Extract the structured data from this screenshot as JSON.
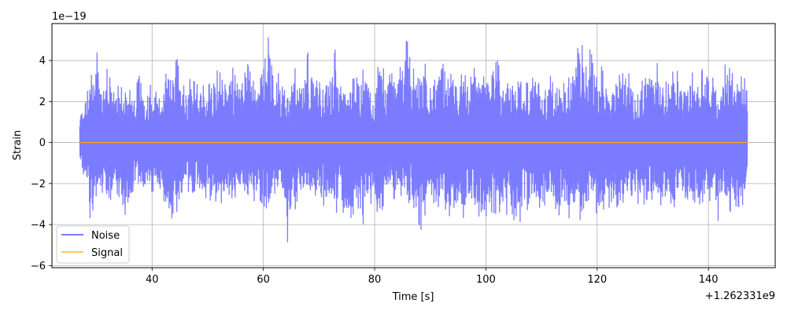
{
  "chart_data": {
    "type": "line",
    "xlabel": "Time [s]",
    "ylabel": "Strain",
    "x_offset_label": "+1.262331e9",
    "y_multiplier_label": "1e−19",
    "xlim": [
      22,
      152
    ],
    "ylim": [
      -6.1,
      5.8
    ],
    "xticks": [
      40,
      60,
      80,
      100,
      120,
      140
    ],
    "yticks": [
      -6,
      -4,
      -2,
      0,
      2,
      4
    ],
    "xtick_labels": [
      "40",
      "60",
      "80",
      "100",
      "120",
      "140"
    ],
    "ytick_labels": [
      "−6",
      "−4",
      "−2",
      "0",
      "2",
      "4"
    ],
    "grid": true,
    "legend": {
      "placement": "bottom-left"
    },
    "series": [
      {
        "name": "Noise",
        "color": "#7b7bff",
        "x_range": [
          27,
          147
        ],
        "envelope": [
          [
            27.0,
            1.5,
            -0.7
          ],
          [
            28.0,
            2.3,
            -2.5
          ],
          [
            29.0,
            3.8,
            -3.9
          ],
          [
            30.0,
            4.6,
            -3.3
          ],
          [
            31.0,
            2.6,
            -2.4
          ],
          [
            32.0,
            3.7,
            -3.4
          ],
          [
            33.0,
            2.4,
            -2.3
          ],
          [
            34.0,
            2.8,
            -2.6
          ],
          [
            35.0,
            2.6,
            -3.7
          ],
          [
            36.0,
            3.3,
            -2.5
          ],
          [
            37.0,
            2.7,
            -2.3
          ],
          [
            38.0,
            3.5,
            -2.3
          ],
          [
            39.0,
            2.6,
            -2.6
          ],
          [
            40.0,
            2.9,
            -2.4
          ],
          [
            41.0,
            2.3,
            -2.4
          ],
          [
            42.0,
            3.1,
            -2.6
          ],
          [
            43.0,
            3.6,
            -4.3
          ],
          [
            44.0,
            3.5,
            -3.2
          ],
          [
            44.5,
            5.2,
            -3.4
          ],
          [
            45.0,
            3.0,
            -2.5
          ],
          [
            46.0,
            2.7,
            -2.3
          ],
          [
            47.0,
            3.2,
            -2.5
          ],
          [
            48.0,
            2.8,
            -2.3
          ],
          [
            49.0,
            3.3,
            -2.9
          ],
          [
            50.0,
            2.7,
            -2.6
          ],
          [
            51.0,
            3.3,
            -3.1
          ],
          [
            52.0,
            3.6,
            -2.6
          ],
          [
            53.0,
            2.7,
            -3.4
          ],
          [
            54.0,
            4.1,
            -2.4
          ],
          [
            55.0,
            3.2,
            -3.3
          ],
          [
            56.0,
            3.6,
            -2.3
          ],
          [
            57.0,
            4.0,
            -2.4
          ],
          [
            58.0,
            3.1,
            -3.0
          ],
          [
            59.0,
            2.7,
            -2.6
          ],
          [
            60.0,
            3.6,
            -3.1
          ],
          [
            61.0,
            5.3,
            -3.3
          ],
          [
            62.0,
            3.1,
            -2.5
          ],
          [
            63.0,
            3.5,
            -2.4
          ],
          [
            64.0,
            2.9,
            -3.6
          ],
          [
            64.5,
            2.4,
            -5.4
          ],
          [
            65.0,
            3.2,
            -2.8
          ],
          [
            66.0,
            3.8,
            -3.4
          ],
          [
            67.0,
            3.1,
            -2.7
          ],
          [
            68.0,
            4.4,
            -2.4
          ],
          [
            69.0,
            3.2,
            -2.9
          ],
          [
            70.0,
            2.9,
            -3.0
          ],
          [
            71.0,
            3.3,
            -3.1
          ],
          [
            72.0,
            3.0,
            -2.8
          ],
          [
            73.0,
            4.7,
            -3.5
          ],
          [
            74.0,
            3.0,
            -3.0
          ],
          [
            75.0,
            2.8,
            -4.2
          ],
          [
            76.0,
            3.1,
            -3.5
          ],
          [
            77.0,
            3.2,
            -3.6
          ],
          [
            78.0,
            3.6,
            -4.0
          ],
          [
            79.0,
            3.3,
            -2.9
          ],
          [
            80.0,
            2.6,
            -3.2
          ],
          [
            81.0,
            4.4,
            -3.6
          ],
          [
            82.0,
            3.1,
            -2.7
          ],
          [
            83.0,
            3.4,
            -2.6
          ],
          [
            84.0,
            3.2,
            -2.9
          ],
          [
            85.0,
            4.0,
            -2.5
          ],
          [
            85.8,
            5.1,
            -3.2
          ],
          [
            86.5,
            3.8,
            -2.7
          ],
          [
            87.5,
            3.4,
            -3.6
          ],
          [
            88.0,
            3.0,
            -4.6
          ],
          [
            89.0,
            3.9,
            -3.6
          ],
          [
            90.0,
            3.3,
            -2.8
          ],
          [
            91.0,
            3.0,
            -3.6
          ],
          [
            92.0,
            4.2,
            -2.6
          ],
          [
            93.0,
            3.0,
            -3.5
          ],
          [
            94.0,
            3.5,
            -3.7
          ],
          [
            95.0,
            3.2,
            -3.2
          ],
          [
            96.0,
            3.4,
            -3.7
          ],
          [
            97.0,
            3.0,
            -3.2
          ],
          [
            98.0,
            3.7,
            -3.0
          ],
          [
            99.0,
            3.1,
            -3.8
          ],
          [
            100.0,
            3.3,
            -3.6
          ],
          [
            101.0,
            3.2,
            -3.4
          ],
          [
            102.0,
            4.1,
            -3.5
          ],
          [
            103.0,
            3.0,
            -3.3
          ],
          [
            104.0,
            3.5,
            -3.6
          ],
          [
            105.0,
            3.1,
            -4.3
          ],
          [
            106.0,
            3.6,
            -4.0
          ],
          [
            107.0,
            3.0,
            -3.2
          ],
          [
            108.0,
            2.8,
            -3.4
          ],
          [
            109.0,
            3.7,
            -2.6
          ],
          [
            110.0,
            3.2,
            -3.5
          ],
          [
            111.0,
            3.0,
            -2.7
          ],
          [
            112.0,
            3.4,
            -2.8
          ],
          [
            113.0,
            3.1,
            -3.6
          ],
          [
            114.0,
            2.9,
            -3.3
          ],
          [
            115.0,
            3.2,
            -4.4
          ],
          [
            116.0,
            4.0,
            -3.3
          ],
          [
            117.0,
            5.2,
            -3.8
          ],
          [
            118.0,
            3.7,
            -3.5
          ],
          [
            119.0,
            4.9,
            -3.2
          ],
          [
            120.0,
            3.0,
            -3.5
          ],
          [
            121.0,
            3.9,
            -3.3
          ],
          [
            122.0,
            2.7,
            -3.1
          ],
          [
            123.0,
            2.9,
            -3.6
          ],
          [
            124.0,
            3.8,
            -2.8
          ],
          [
            125.0,
            3.1,
            -3.0
          ],
          [
            126.0,
            3.5,
            -3.3
          ],
          [
            127.0,
            2.7,
            -3.1
          ],
          [
            128.0,
            3.0,
            -2.8
          ],
          [
            129.0,
            3.2,
            -3.3
          ],
          [
            130.0,
            3.0,
            -2.7
          ],
          [
            131.0,
            4.1,
            -3.1
          ],
          [
            132.0,
            3.1,
            -3.0
          ],
          [
            133.0,
            2.8,
            -2.9
          ],
          [
            134.0,
            3.9,
            -3.2
          ],
          [
            135.0,
            2.9,
            -2.7
          ],
          [
            136.0,
            3.0,
            -3.2
          ],
          [
            137.0,
            3.5,
            -2.7
          ],
          [
            138.0,
            2.6,
            -3.1
          ],
          [
            139.0,
            3.7,
            -2.9
          ],
          [
            140.0,
            3.0,
            -2.8
          ],
          [
            141.0,
            3.2,
            -3.0
          ],
          [
            142.0,
            2.7,
            -4.1
          ],
          [
            143.0,
            3.8,
            -2.9
          ],
          [
            144.0,
            3.6,
            -3.4
          ],
          [
            145.0,
            2.9,
            -3.1
          ],
          [
            146.0,
            4.6,
            -3.2
          ],
          [
            146.5,
            3.6,
            -2.7
          ],
          [
            147.0,
            2.3,
            -1.8
          ]
        ]
      },
      {
        "name": "Signal",
        "color": "#ffa500",
        "x": [
          27,
          147
        ],
        "y": [
          0,
          0
        ]
      }
    ]
  }
}
